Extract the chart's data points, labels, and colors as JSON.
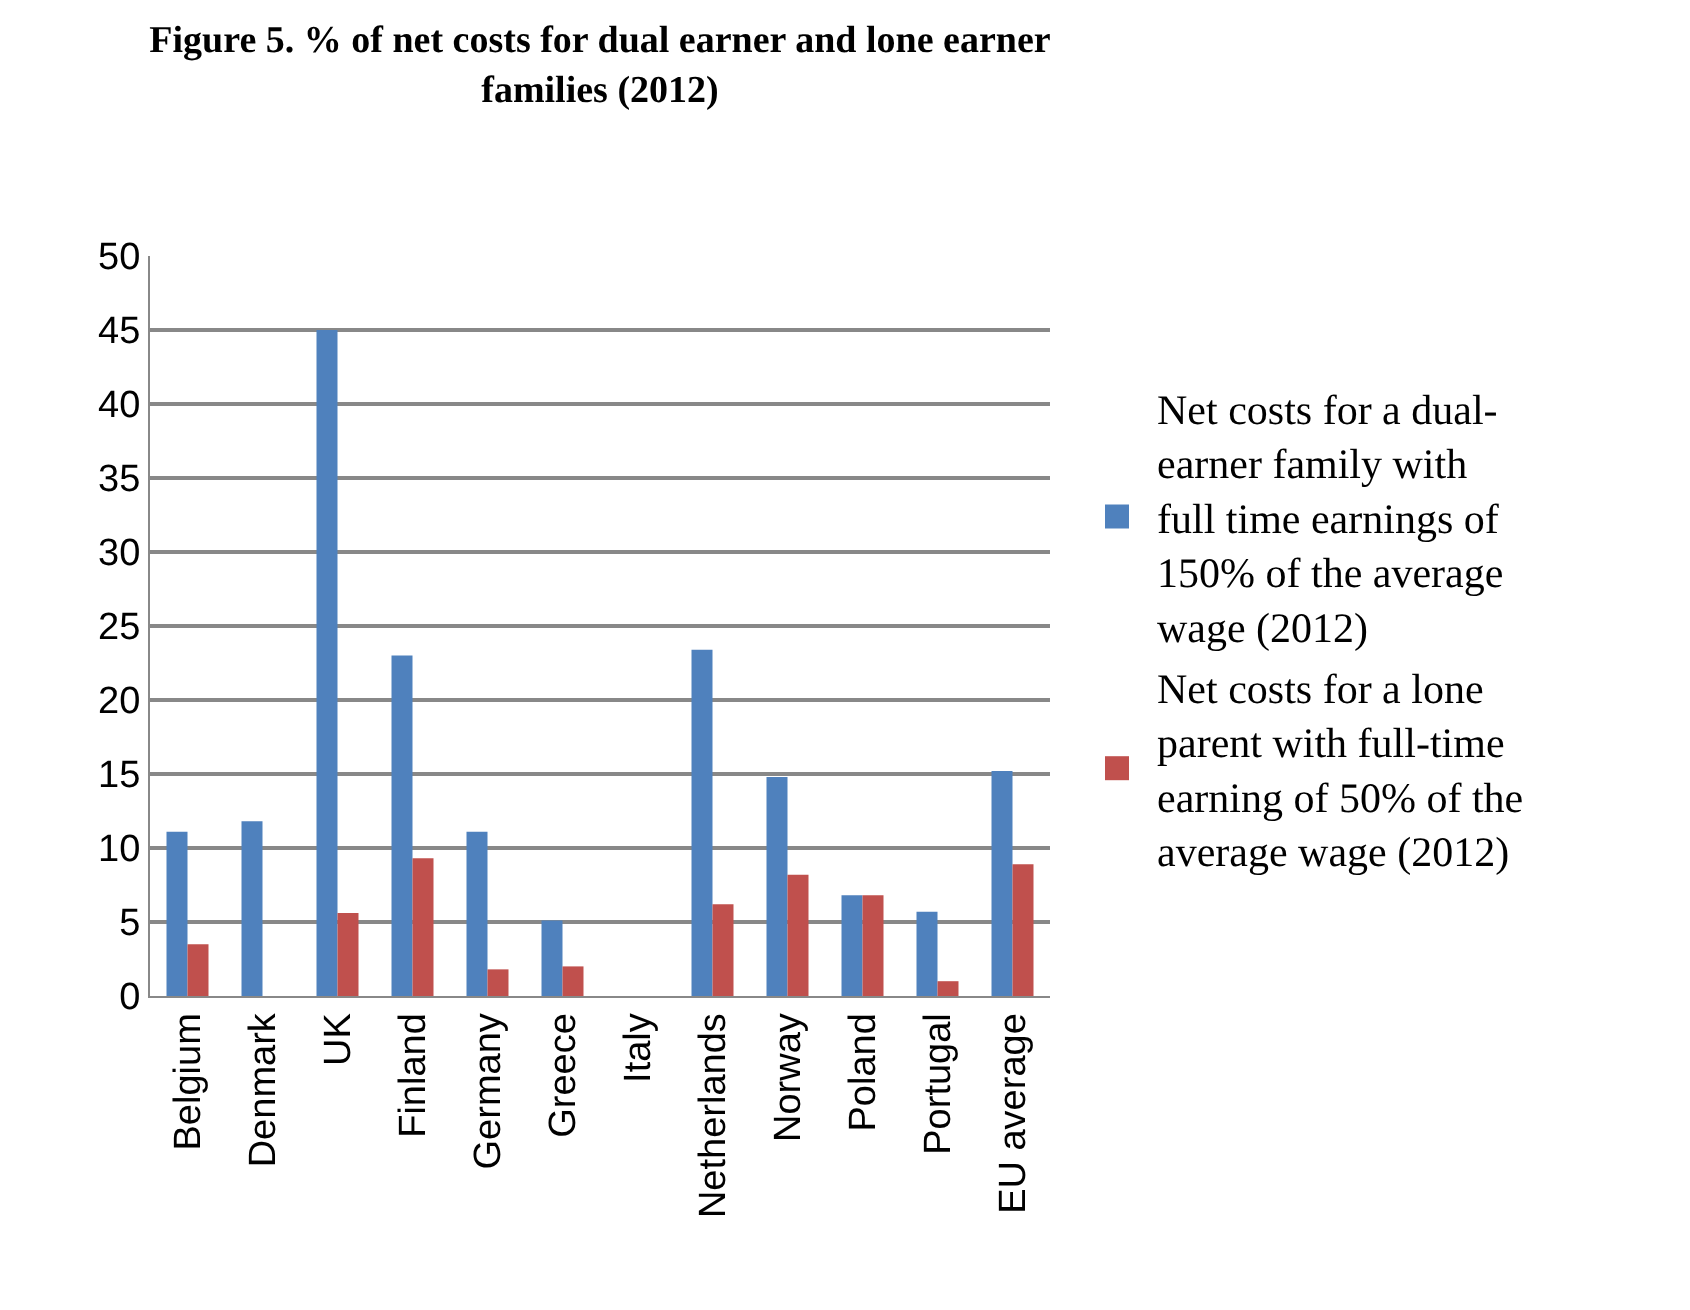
{
  "chart_data": {
    "type": "bar",
    "title": "Figure  5. % of  net costs for dual earner and lone earner families (2012)",
    "categories": [
      "Belgium",
      "Denmark",
      "UK",
      "Finland",
      "Germany",
      "Greece",
      "Italy",
      "Netherlands",
      "Norway",
      "Poland",
      "Portugal",
      "EU average"
    ],
    "series": [
      {
        "name": "Net costs for a dual-earner family with full time earnings of 150% of the average wage (2012)",
        "color": "#4f81bd",
        "values": [
          11.1,
          11.8,
          45,
          23.0,
          11.1,
          5.1,
          0,
          23.4,
          14.8,
          6.8,
          5.7,
          15.2
        ]
      },
      {
        "name": "Net costs for a lone parent with full-time earning of 50% of the average wage (2012)",
        "color": "#c0504d",
        "values": [
          3.5,
          0,
          5.6,
          9.3,
          1.8,
          2.0,
          0,
          6.2,
          8.2,
          6.8,
          1.0,
          8.9
        ]
      }
    ],
    "ylim": [
      0,
      50
    ],
    "yticks": [
      0,
      5,
      10,
      15,
      20,
      25,
      30,
      35,
      40,
      45,
      50
    ],
    "grid": "y",
    "legend": "right"
  }
}
